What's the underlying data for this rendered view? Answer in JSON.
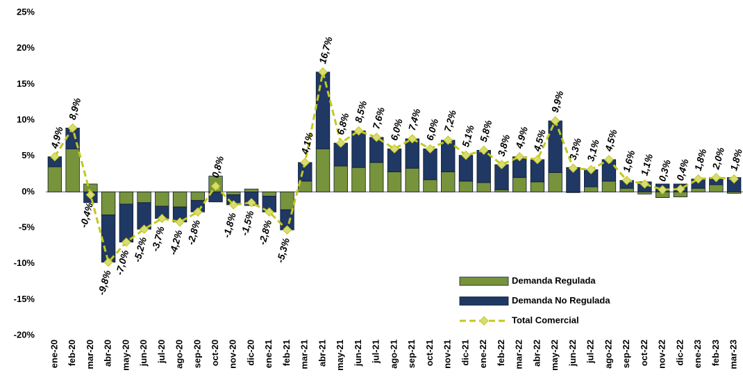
{
  "chart_data": {
    "type": "bar",
    "categories": [
      "ene-20",
      "feb-20",
      "mar-20",
      "abr-20",
      "may-20",
      "jun-20",
      "jul-20",
      "ago-20",
      "sep-20",
      "oct-20",
      "nov-20",
      "dic-20",
      "ene-21",
      "feb-21",
      "mar-21",
      "abr-21",
      "may-21",
      "jun-21",
      "jul-21",
      "ago-21",
      "sep-21",
      "oct-21",
      "nov-21",
      "dic-21",
      "ene-22",
      "feb-22",
      "mar-22",
      "abr-22",
      "may-22",
      "jun-22",
      "jul-22",
      "ago-22",
      "sep-22",
      "oct-22",
      "nov-22",
      "dic-22",
      "ene-23",
      "feb-23",
      "mar-23"
    ],
    "series": [
      {
        "name": "Demanda Regulada",
        "type": "bar",
        "color": "#77933c",
        "values": [
          3.5,
          6.0,
          1.1,
          -3.2,
          -1.7,
          -1.5,
          -2.0,
          -2.1,
          -1.2,
          2.2,
          -0.4,
          0.4,
          -0.6,
          -2.5,
          1.5,
          6.0,
          3.6,
          3.4,
          4.1,
          2.8,
          3.3,
          1.7,
          2.8,
          1.5,
          1.3,
          0.3,
          2.0,
          1.4,
          2.7,
          -0.1,
          0.7,
          1.5,
          0.5,
          -0.3,
          -0.8,
          -0.7,
          0.5,
          1.0,
          -0.2
        ]
      },
      {
        "name": "Demanda No Regulada",
        "type": "bar",
        "color": "#1f3864",
        "values": [
          1.4,
          2.9,
          -1.5,
          -6.6,
          -5.3,
          -3.7,
          -1.7,
          -2.1,
          -1.6,
          -1.4,
          -1.4,
          -1.9,
          -2.2,
          -2.8,
          2.6,
          10.7,
          3.2,
          5.1,
          3.5,
          3.2,
          4.1,
          4.3,
          4.4,
          3.6,
          4.5,
          3.5,
          2.9,
          3.1,
          7.2,
          3.4,
          2.4,
          3.0,
          1.1,
          1.4,
          1.1,
          1.1,
          1.3,
          1.0,
          2.0
        ]
      },
      {
        "name": "Total Comercial",
        "type": "line",
        "color": "#c2c81e",
        "marker_color": "#d9dc70",
        "values": [
          4.9,
          8.9,
          -0.4,
          -9.8,
          -7.0,
          -5.2,
          -3.7,
          -4.2,
          -2.8,
          0.8,
          -1.8,
          -1.5,
          -2.8,
          -5.3,
          4.1,
          16.7,
          6.8,
          8.5,
          7.6,
          6.0,
          7.4,
          6.0,
          7.2,
          5.1,
          5.8,
          3.8,
          4.9,
          4.5,
          9.9,
          3.3,
          3.1,
          4.5,
          1.6,
          1.1,
          0.3,
          0.4,
          1.8,
          2.0,
          1.8
        ],
        "value_labels": [
          "4,9%",
          "8,9%",
          "-0,4%",
          "-9,8%",
          "-7,0%",
          "-5,2%",
          "-3,7%",
          "-4,2%",
          "-2,8%",
          "0,8%",
          "-1,8%",
          "-1,5%",
          "-2,8%",
          "-5,3%",
          "4,1%",
          "16,7%",
          "6,8%",
          "8,5%",
          "7,6%",
          "6,0%",
          "7,4%",
          "6,0%",
          "7,2%",
          "5,1%",
          "5,8%",
          "3,8%",
          "4,9%",
          "4,5%",
          "9,9%",
          "3,3%",
          "3,1%",
          "4,5%",
          "1,6%",
          "1,1%",
          "0,3%",
          "0,4%",
          "1,8%",
          "2,0%",
          "1,8%"
        ]
      }
    ],
    "ylim": [
      -20,
      25
    ],
    "yticks": [
      {
        "value": -20,
        "label": "-20%"
      },
      {
        "value": -15,
        "label": "-15%"
      },
      {
        "value": -10,
        "label": "-10%"
      },
      {
        "value": -5,
        "label": "-5%"
      },
      {
        "value": 0,
        "label": "0%"
      },
      {
        "value": 5,
        "label": "5%"
      },
      {
        "value": 10,
        "label": "10%"
      },
      {
        "value": 15,
        "label": "15%"
      },
      {
        "value": 20,
        "label": "20%"
      },
      {
        "value": 25,
        "label": "25%"
      }
    ],
    "grid": false,
    "legend": "lower right"
  }
}
